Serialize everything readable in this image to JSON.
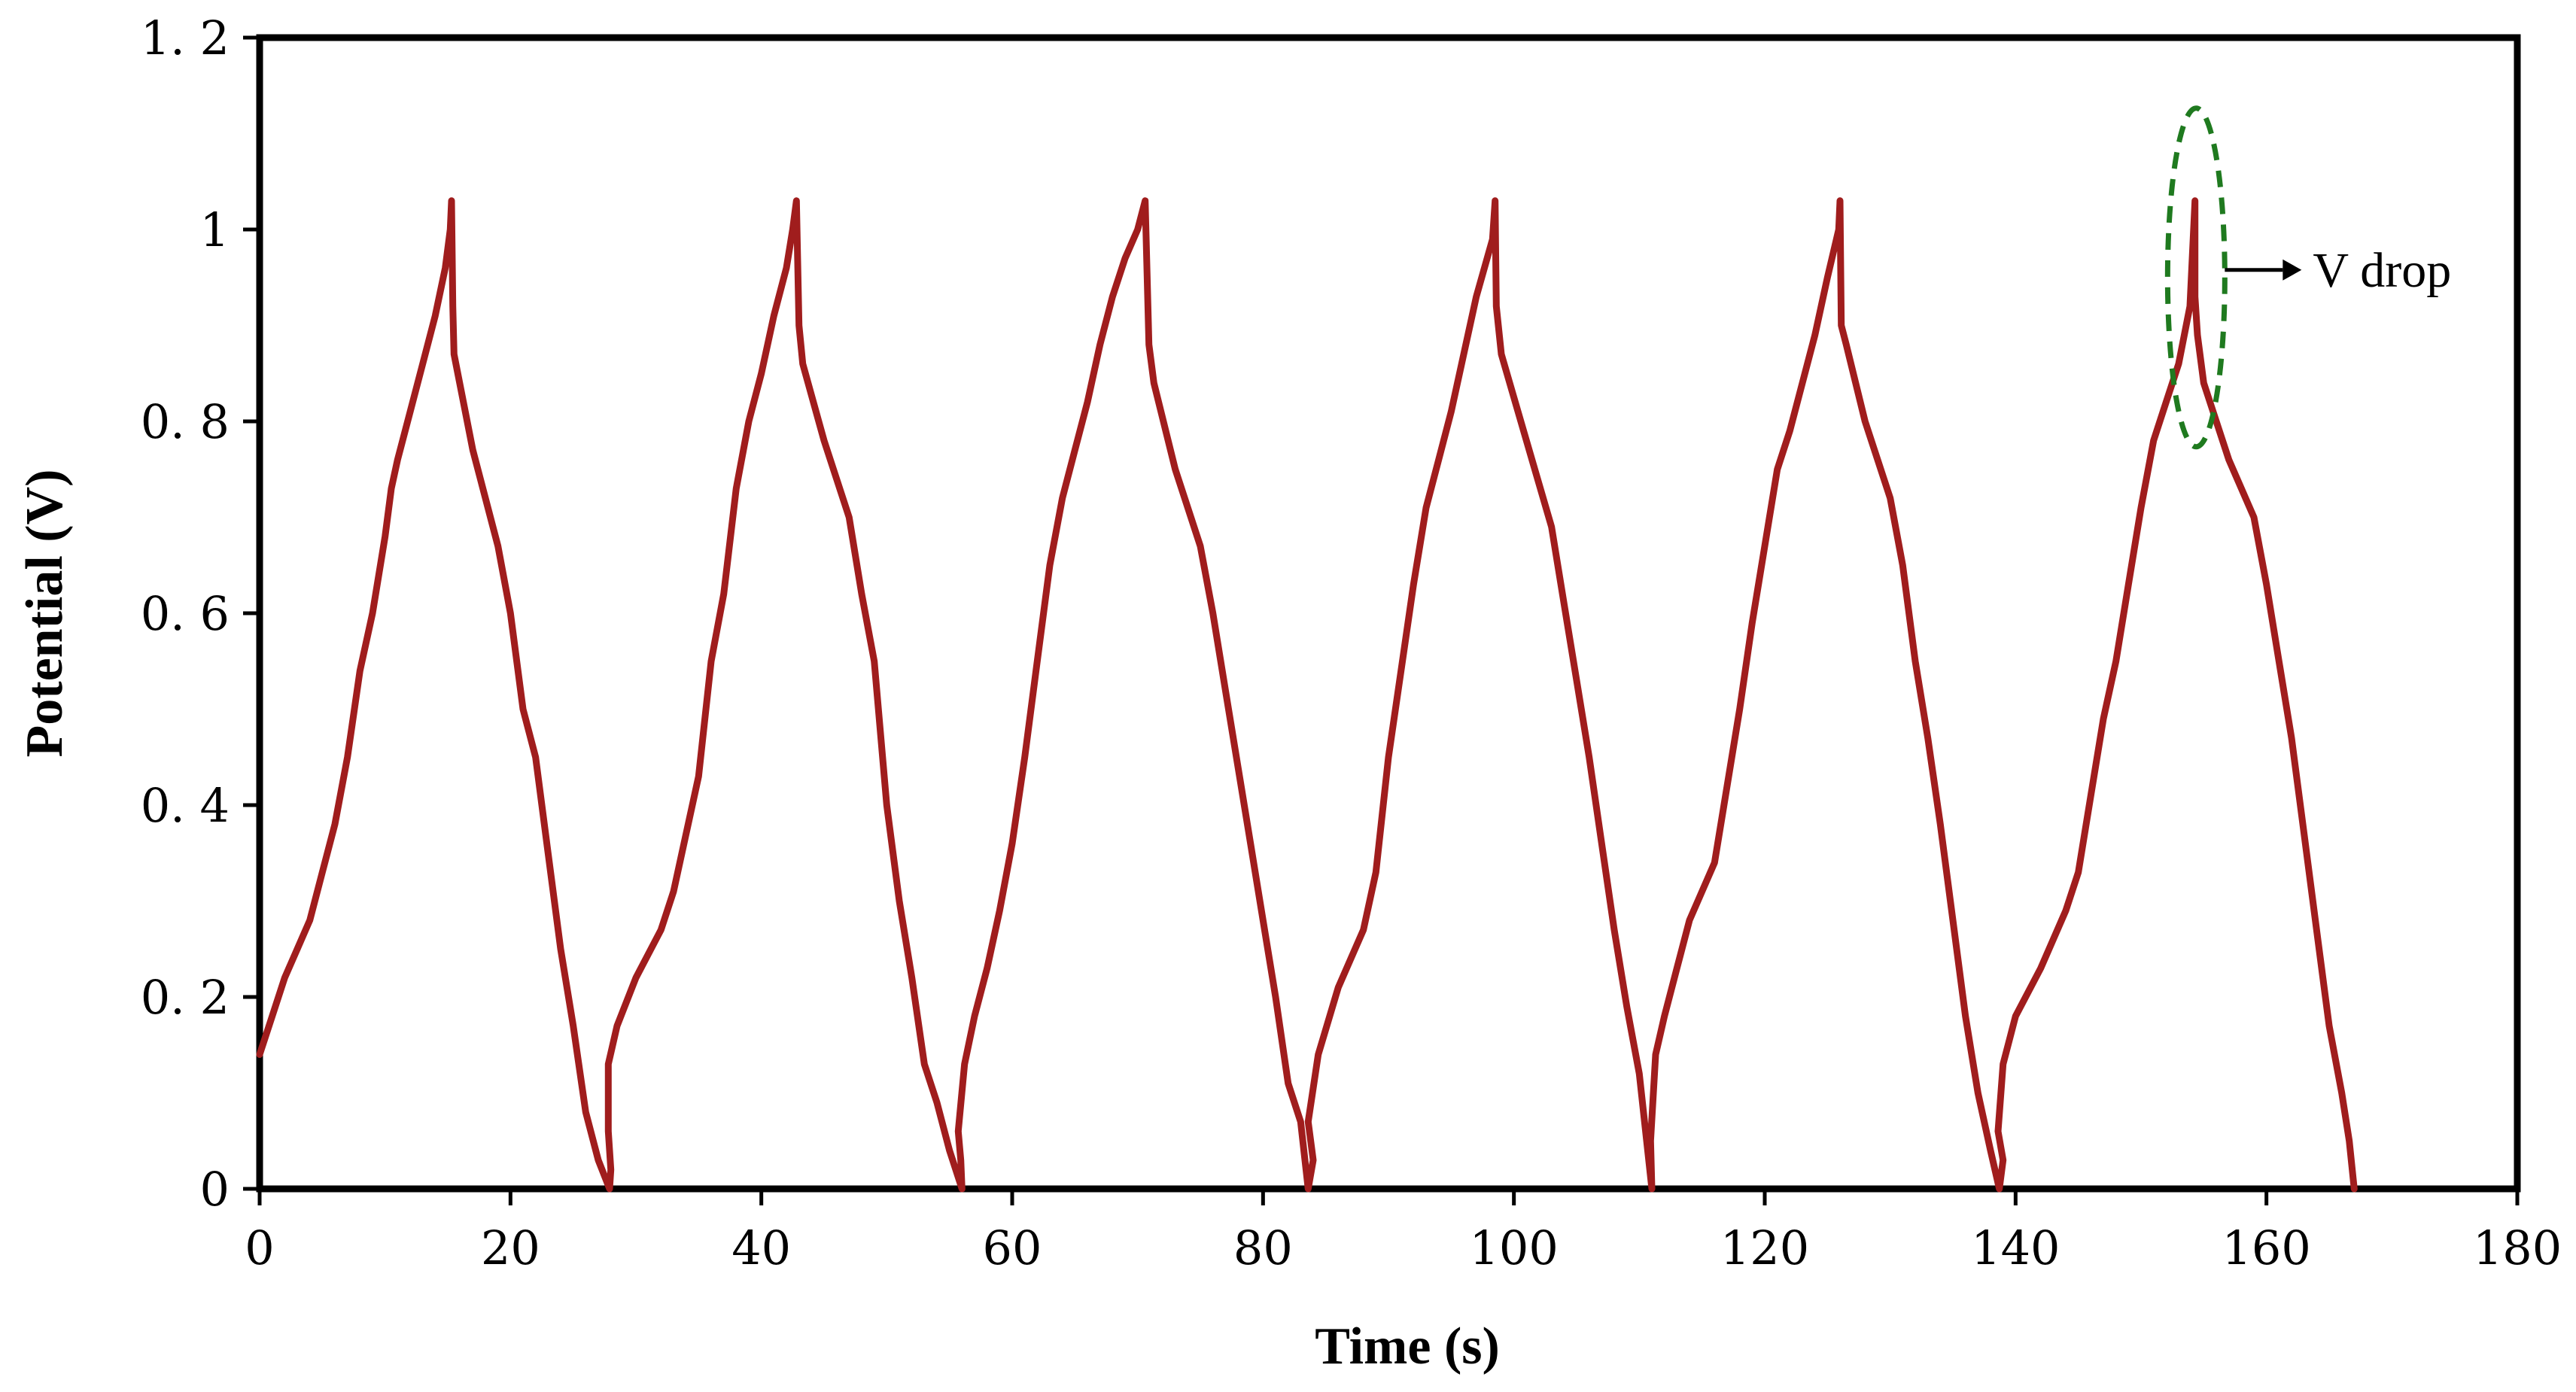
{
  "chart_data": {
    "type": "line",
    "xlabel": "Time (s)",
    "ylabel": "Potential (V)",
    "xlim": [
      0,
      180
    ],
    "ylim": [
      0,
      1.2
    ],
    "x_ticks": [
      "0",
      "20",
      "40",
      "60",
      "80",
      "100",
      "120",
      "140",
      "160",
      "180"
    ],
    "y_ticks": [
      "0",
      "0. 2",
      "0. 4",
      "0. 6",
      "0. 8",
      "1",
      "1. 2"
    ],
    "grid": false,
    "legend": "none",
    "series": [
      {
        "color": "#A01D1D",
        "points": [
          [
            0,
            0.14
          ],
          [
            1,
            0.18
          ],
          [
            2,
            0.22
          ],
          [
            3,
            0.25
          ],
          [
            4,
            0.28
          ],
          [
            5,
            0.33
          ],
          [
            6,
            0.38
          ],
          [
            7,
            0.45
          ],
          [
            8,
            0.54
          ],
          [
            9,
            0.6
          ],
          [
            10,
            0.68
          ],
          [
            10.5,
            0.73
          ],
          [
            11,
            0.76
          ],
          [
            12,
            0.81
          ],
          [
            13,
            0.86
          ],
          [
            14,
            0.91
          ],
          [
            14.8,
            0.96
          ],
          [
            15.2,
            1.0
          ],
          [
            15.3,
            1.03
          ],
          [
            15.4,
            0.92
          ],
          [
            15.5,
            0.87
          ],
          [
            17,
            0.77
          ],
          [
            19,
            0.67
          ],
          [
            20,
            0.6
          ],
          [
            21,
            0.5
          ],
          [
            22,
            0.45
          ],
          [
            23,
            0.35
          ],
          [
            24,
            0.25
          ],
          [
            25,
            0.17
          ],
          [
            26,
            0.08
          ],
          [
            27,
            0.03
          ],
          [
            27.9,
            0.0
          ],
          [
            28,
            0.02
          ],
          [
            27.8,
            0.06
          ],
          [
            27.8,
            0.13
          ],
          [
            28.5,
            0.17
          ],
          [
            30,
            0.22
          ],
          [
            32,
            0.27
          ],
          [
            33,
            0.31
          ],
          [
            35,
            0.43
          ],
          [
            36,
            0.55
          ],
          [
            37,
            0.62
          ],
          [
            38,
            0.73
          ],
          [
            39,
            0.8
          ],
          [
            40,
            0.85
          ],
          [
            41,
            0.91
          ],
          [
            42,
            0.96
          ],
          [
            42.5,
            1.0
          ],
          [
            42.8,
            1.03
          ],
          [
            43,
            0.9
          ],
          [
            43.3,
            0.86
          ],
          [
            45,
            0.78
          ],
          [
            47,
            0.7
          ],
          [
            48,
            0.62
          ],
          [
            49,
            0.55
          ],
          [
            50,
            0.4
          ],
          [
            51,
            0.3
          ],
          [
            52,
            0.22
          ],
          [
            53,
            0.13
          ],
          [
            54,
            0.09
          ],
          [
            55,
            0.04
          ],
          [
            56,
            0.0
          ],
          [
            55.9,
            0.03
          ],
          [
            55.7,
            0.06
          ],
          [
            56.2,
            0.13
          ],
          [
            57,
            0.18
          ],
          [
            58,
            0.23
          ],
          [
            59,
            0.29
          ],
          [
            60,
            0.36
          ],
          [
            61,
            0.45
          ],
          [
            62,
            0.55
          ],
          [
            63,
            0.65
          ],
          [
            64,
            0.72
          ],
          [
            65,
            0.77
          ],
          [
            66,
            0.82
          ],
          [
            67,
            0.88
          ],
          [
            68,
            0.93
          ],
          [
            69,
            0.97
          ],
          [
            70,
            1.0
          ],
          [
            70.6,
            1.03
          ],
          [
            70.9,
            0.88
          ],
          [
            71.3,
            0.84
          ],
          [
            73,
            0.75
          ],
          [
            75,
            0.67
          ],
          [
            76,
            0.6
          ],
          [
            77,
            0.52
          ],
          [
            78,
            0.44
          ],
          [
            79,
            0.36
          ],
          [
            80,
            0.28
          ],
          [
            81,
            0.2
          ],
          [
            82,
            0.11
          ],
          [
            83,
            0.07
          ],
          [
            83.6,
            0.0
          ],
          [
            84,
            0.03
          ],
          [
            83.6,
            0.07
          ],
          [
            84.4,
            0.14
          ],
          [
            86,
            0.21
          ],
          [
            88,
            0.27
          ],
          [
            89,
            0.33
          ],
          [
            90,
            0.45
          ],
          [
            91,
            0.54
          ],
          [
            92,
            0.63
          ],
          [
            93,
            0.71
          ],
          [
            94,
            0.76
          ],
          [
            95,
            0.81
          ],
          [
            96,
            0.87
          ],
          [
            97,
            0.93
          ],
          [
            98.3,
            0.99
          ],
          [
            98.5,
            1.03
          ],
          [
            98.6,
            0.92
          ],
          [
            99,
            0.87
          ],
          [
            101,
            0.78
          ],
          [
            103,
            0.69
          ],
          [
            104,
            0.61
          ],
          [
            105,
            0.53
          ],
          [
            106,
            0.45
          ],
          [
            107,
            0.36
          ],
          [
            108,
            0.27
          ],
          [
            109,
            0.19
          ],
          [
            110,
            0.12
          ],
          [
            111,
            0.0
          ],
          [
            110.9,
            0.05
          ],
          [
            111.3,
            0.14
          ],
          [
            112,
            0.18
          ],
          [
            113,
            0.23
          ],
          [
            114,
            0.28
          ],
          [
            116,
            0.34
          ],
          [
            117,
            0.42
          ],
          [
            118,
            0.5
          ],
          [
            119,
            0.59
          ],
          [
            120,
            0.67
          ],
          [
            121,
            0.75
          ],
          [
            122,
            0.79
          ],
          [
            123,
            0.84
          ],
          [
            124,
            0.89
          ],
          [
            125,
            0.95
          ],
          [
            125.9,
            1.0
          ],
          [
            126,
            1.03
          ],
          [
            126.1,
            0.9
          ],
          [
            126.5,
            0.88
          ],
          [
            128,
            0.8
          ],
          [
            130,
            0.72
          ],
          [
            131,
            0.65
          ],
          [
            132,
            0.55
          ],
          [
            133,
            0.47
          ],
          [
            134,
            0.38
          ],
          [
            135,
            0.28
          ],
          [
            136,
            0.18
          ],
          [
            137,
            0.1
          ],
          [
            138,
            0.04
          ],
          [
            138.7,
            0.0
          ],
          [
            139,
            0.03
          ],
          [
            138.6,
            0.06
          ],
          [
            139,
            0.13
          ],
          [
            140,
            0.18
          ],
          [
            142,
            0.23
          ],
          [
            144,
            0.29
          ],
          [
            145,
            0.33
          ],
          [
            146,
            0.41
          ],
          [
            147,
            0.49
          ],
          [
            148,
            0.55
          ],
          [
            149,
            0.63
          ],
          [
            150,
            0.71
          ],
          [
            151,
            0.78
          ],
          [
            152,
            0.82
          ],
          [
            153,
            0.86
          ],
          [
            153.9,
            0.92
          ],
          [
            154.3,
            1.03
          ],
          [
            154.3,
            0.93
          ],
          [
            154.5,
            0.89
          ],
          [
            155,
            0.84
          ],
          [
            157,
            0.76
          ],
          [
            159,
            0.7
          ],
          [
            160,
            0.63
          ],
          [
            161,
            0.55
          ],
          [
            162,
            0.47
          ],
          [
            163,
            0.37
          ],
          [
            164,
            0.27
          ],
          [
            165,
            0.17
          ],
          [
            166,
            0.1
          ],
          [
            166.6,
            0.05
          ],
          [
            167,
            0.0
          ]
        ]
      }
    ],
    "annotations": [
      {
        "text": "V drop",
        "x": 155,
        "y": 0.95,
        "style": "dashed-ellipse",
        "color": "#1F7A1F"
      }
    ]
  }
}
